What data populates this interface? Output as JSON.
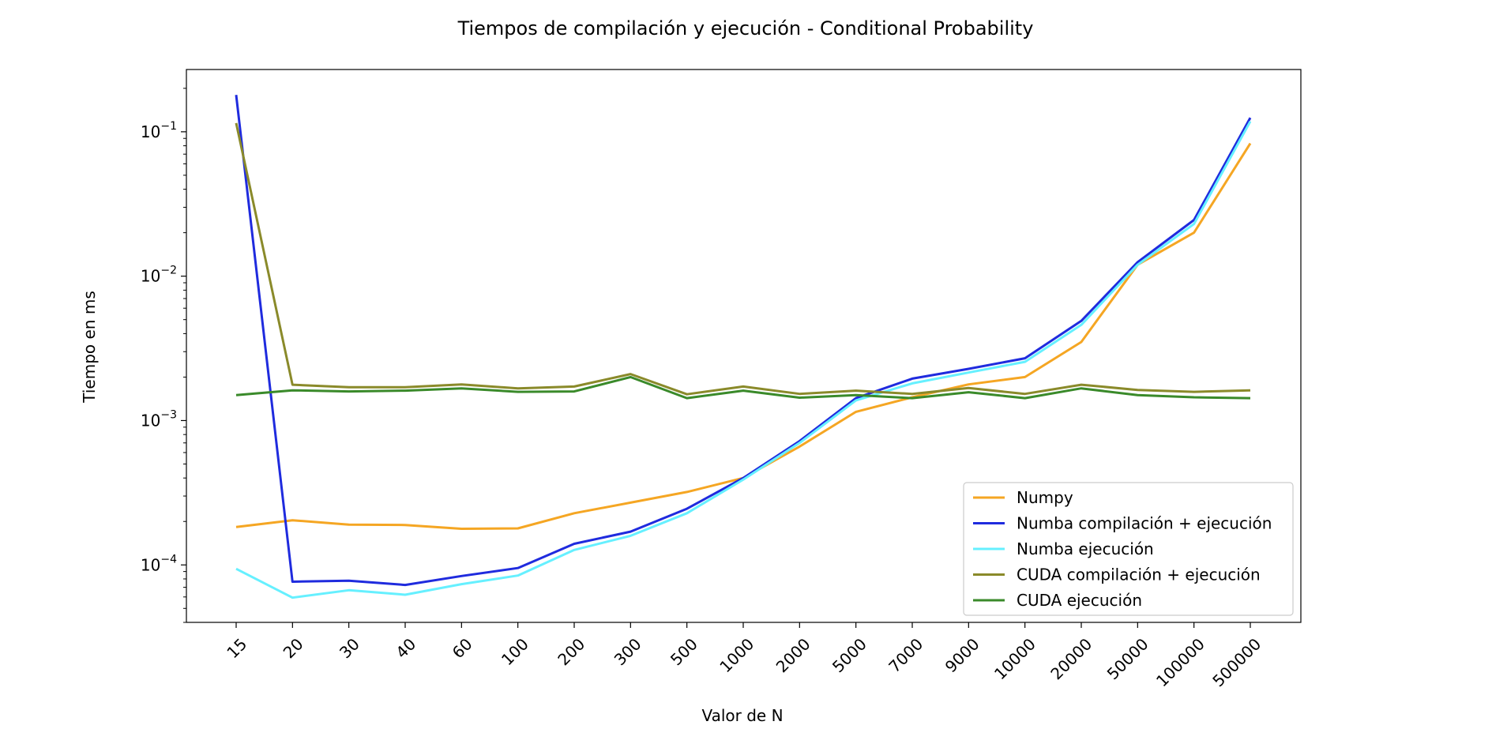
{
  "chart_data": {
    "type": "line",
    "title": "Tiempos de compilación y ejecución - Conditional Probability",
    "xlabel": "Valor de N",
    "ylabel": "Tiempo en ms",
    "y_scale": "log",
    "ylim": [
      4e-05,
      0.27
    ],
    "grid": false,
    "legend_position": "lower-right",
    "categories": [
      "15",
      "20",
      "30",
      "40",
      "60",
      "100",
      "200",
      "300",
      "500",
      "1000",
      "2000",
      "5000",
      "7000",
      "9000",
      "10000",
      "20000",
      "50000",
      "100000",
      "500000"
    ],
    "y_ticks": [
      {
        "value": 0.0001,
        "base": "10",
        "exp": "−4"
      },
      {
        "value": 0.001,
        "base": "10",
        "exp": "−3"
      },
      {
        "value": 0.01,
        "base": "10",
        "exp": "−2"
      },
      {
        "value": 0.1,
        "base": "10",
        "exp": "−1"
      }
    ],
    "series": [
      {
        "name": "Numpy",
        "color": "#f5a623",
        "values": [
          0.000183,
          0.000204,
          0.00019,
          0.000189,
          0.000178,
          0.000179,
          0.000228,
          0.00027,
          0.00032,
          0.0004,
          0.00066,
          0.00115,
          0.00145,
          0.00178,
          0.002,
          0.0035,
          0.012,
          0.02,
          0.083
        ]
      },
      {
        "name": "Numba compilación + ejecución",
        "color": "#1f2bde",
        "values": [
          0.18,
          7.65e-05,
          7.78e-05,
          7.27e-05,
          8.38e-05,
          9.52e-05,
          0.00014,
          0.00017,
          0.000245,
          0.0004,
          0.00072,
          0.00143,
          0.00195,
          0.00228,
          0.0027,
          0.0049,
          0.0125,
          0.0245,
          0.125
        ]
      },
      {
        "name": "Numba ejecución",
        "color": "#66f0ff",
        "values": [
          9.4e-05,
          5.93e-05,
          6.68e-05,
          6.22e-05,
          7.36e-05,
          8.44e-05,
          0.000127,
          0.000159,
          0.000228,
          0.00039,
          0.0007,
          0.00138,
          0.00181,
          0.00215,
          0.00255,
          0.0046,
          0.012,
          0.023,
          0.118
        ]
      },
      {
        "name": "CUDA compilación + ejecución",
        "color": "#8a8a2a",
        "values": [
          0.115,
          0.00177,
          0.0017,
          0.0017,
          0.00178,
          0.00167,
          0.00172,
          0.0021,
          0.00152,
          0.00172,
          0.00153,
          0.00161,
          0.00153,
          0.00168,
          0.00153,
          0.00177,
          0.00163,
          0.00158,
          0.00162
        ]
      },
      {
        "name": "CUDA ejecución",
        "color": "#3a8a2a",
        "values": [
          0.0015,
          0.00162,
          0.00159,
          0.00161,
          0.00167,
          0.00158,
          0.00159,
          0.002,
          0.00143,
          0.00161,
          0.00144,
          0.0015,
          0.00143,
          0.00157,
          0.00143,
          0.00167,
          0.0015,
          0.00145,
          0.00143
        ]
      }
    ]
  }
}
